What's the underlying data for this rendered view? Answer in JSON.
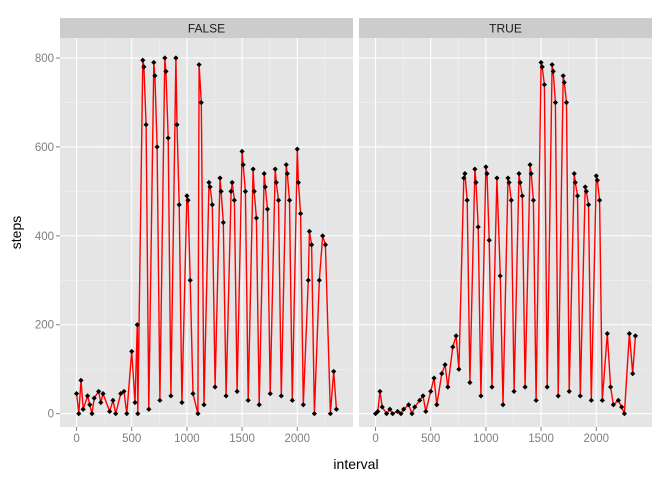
{
  "chart_data": {
    "type": "line",
    "xlabel": "interval",
    "ylabel": "steps",
    "xlim": [
      -150,
      2505
    ],
    "ylim": [
      -30,
      845
    ],
    "xticks": [
      0,
      500,
      1000,
      1500,
      2000
    ],
    "yticks": [
      0,
      200,
      400,
      600,
      800
    ],
    "grid": true,
    "legend": "none",
    "colors": {
      "panel_bg": "#E5E5E5",
      "strip_bg": "#CCCCCC",
      "grid_major": "#FFFFFF",
      "grid_minor": "#F2F2F2",
      "line": "#FF0000",
      "point": "#000000"
    },
    "panels": [
      {
        "label": "FALSE",
        "series": [
          {
            "x": [
              0,
              20,
              40,
              60,
              100,
              120,
              140,
              160,
              200,
              220,
              240,
              300,
              330,
              355,
              400,
              430,
              455,
              500,
              530,
              550,
              555,
              600,
              610,
              630,
              655,
              700,
              710,
              730,
              755,
              800,
              810,
              830,
              855,
              900,
              910,
              930,
              955,
              1000,
              1010,
              1030,
              1055,
              1100,
              1110,
              1130,
              1155,
              1200,
              1210,
              1230,
              1255,
              1300,
              1310,
              1330,
              1355,
              1400,
              1410,
              1430,
              1455,
              1500,
              1510,
              1530,
              1555,
              1600,
              1610,
              1630,
              1655,
              1700,
              1710,
              1730,
              1755,
              1800,
              1810,
              1830,
              1855,
              1900,
              1910,
              1930,
              1955,
              2000,
              2010,
              2030,
              2055,
              2100,
              2110,
              2130,
              2155,
              2200,
              2230,
              2255,
              2300,
              2330,
              2355
            ],
            "y": [
              45,
              0,
              75,
              10,
              40,
              20,
              0,
              35,
              50,
              25,
              45,
              5,
              30,
              0,
              45,
              50,
              0,
              140,
              25,
              200,
              0,
              795,
              780,
              650,
              10,
              790,
              760,
              600,
              30,
              800,
              770,
              620,
              40,
              800,
              650,
              470,
              25,
              490,
              480,
              300,
              45,
              0,
              785,
              700,
              20,
              520,
              510,
              470,
              60,
              530,
              500,
              430,
              40,
              500,
              520,
              480,
              50,
              590,
              560,
              500,
              30,
              550,
              500,
              440,
              20,
              540,
              510,
              460,
              45,
              550,
              520,
              480,
              40,
              560,
              540,
              480,
              30,
              595,
              520,
              450,
              20,
              300,
              410,
              380,
              0,
              300,
              400,
              380,
              0,
              95,
              10
            ]
          }
        ]
      },
      {
        "label": "TRUE",
        "series": [
          {
            "x": [
              0,
              20,
              40,
              60,
              100,
              130,
              155,
              200,
              230,
              255,
              300,
              330,
              355,
              400,
              430,
              455,
              500,
              530,
              555,
              600,
              630,
              655,
              700,
              730,
              755,
              800,
              810,
              830,
              855,
              900,
              910,
              930,
              955,
              1000,
              1010,
              1030,
              1055,
              1100,
              1130,
              1155,
              1200,
              1210,
              1230,
              1255,
              1300,
              1310,
              1330,
              1355,
              1400,
              1410,
              1430,
              1455,
              1500,
              1510,
              1530,
              1555,
              1600,
              1610,
              1630,
              1655,
              1700,
              1710,
              1730,
              1755,
              1800,
              1810,
              1830,
              1855,
              1900,
              1910,
              1930,
              1955,
              2000,
              2010,
              2030,
              2055,
              2100,
              2130,
              2155,
              2200,
              2230,
              2255,
              2300,
              2330,
              2355
            ],
            "y": [
              0,
              5,
              50,
              15,
              0,
              10,
              0,
              5,
              0,
              10,
              20,
              0,
              15,
              30,
              40,
              5,
              50,
              80,
              20,
              90,
              110,
              60,
              150,
              175,
              100,
              530,
              540,
              480,
              70,
              550,
              520,
              420,
              40,
              555,
              540,
              390,
              60,
              530,
              310,
              20,
              530,
              520,
              480,
              50,
              540,
              520,
              490,
              60,
              560,
              540,
              480,
              30,
              790,
              780,
              740,
              60,
              785,
              770,
              700,
              40,
              760,
              745,
              700,
              50,
              540,
              520,
              490,
              40,
              510,
              500,
              470,
              30,
              535,
              525,
              480,
              30,
              180,
              60,
              20,
              30,
              15,
              0,
              180,
              90,
              175
            ]
          }
        ]
      }
    ]
  }
}
